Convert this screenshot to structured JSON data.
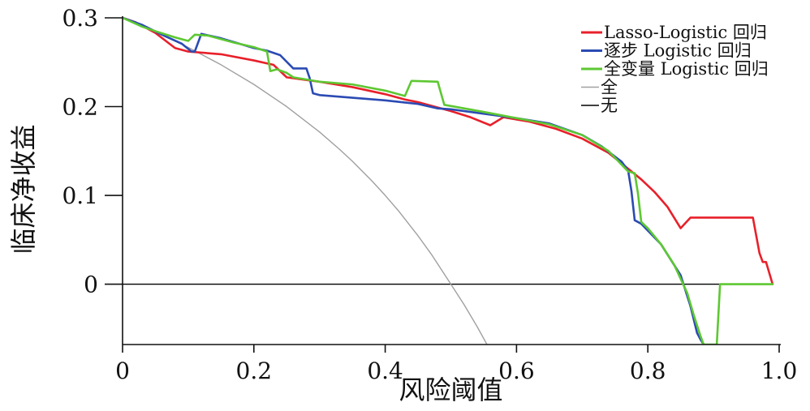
{
  "chart_data": {
    "type": "line",
    "xlabel": "风险阈值",
    "ylabel": "临床净收益",
    "xlim": [
      0,
      1.0
    ],
    "ylim": [
      -0.068,
      0.3
    ],
    "x_ticks": [
      {
        "value": 0,
        "label": "0"
      },
      {
        "value": 0.2,
        "label": "0.2"
      },
      {
        "value": 0.4,
        "label": "0.4"
      },
      {
        "value": 0.6,
        "label": "0.6"
      },
      {
        "value": 0.8,
        "label": "0.8"
      },
      {
        "value": 1.0,
        "label": "1.0"
      }
    ],
    "y_ticks": [
      {
        "value": 0,
        "label": "0"
      },
      {
        "value": 0.1,
        "label": "0.1"
      },
      {
        "value": 0.2,
        "label": "0.2"
      },
      {
        "value": 0.3,
        "label": "0.3"
      }
    ],
    "grid": false,
    "legend_position": "top-right",
    "series": [
      {
        "name": "Lasso-Logistic 回归",
        "color": "#e8202a",
        "width": 2.6,
        "points": [
          [
            0,
            0.3
          ],
          [
            0.02,
            0.295
          ],
          [
            0.05,
            0.283
          ],
          [
            0.08,
            0.266
          ],
          [
            0.1,
            0.262
          ],
          [
            0.15,
            0.259
          ],
          [
            0.2,
            0.252
          ],
          [
            0.23,
            0.247
          ],
          [
            0.25,
            0.233
          ],
          [
            0.3,
            0.228
          ],
          [
            0.35,
            0.222
          ],
          [
            0.4,
            0.214
          ],
          [
            0.43,
            0.208
          ],
          [
            0.45,
            0.205
          ],
          [
            0.5,
            0.195
          ],
          [
            0.53,
            0.188
          ],
          [
            0.56,
            0.179
          ],
          [
            0.58,
            0.188
          ],
          [
            0.62,
            0.183
          ],
          [
            0.66,
            0.175
          ],
          [
            0.7,
            0.164
          ],
          [
            0.74,
            0.148
          ],
          [
            0.77,
            0.13
          ],
          [
            0.79,
            0.118
          ],
          [
            0.81,
            0.104
          ],
          [
            0.83,
            0.087
          ],
          [
            0.85,
            0.063
          ],
          [
            0.865,
            0.075
          ],
          [
            0.9,
            0.075
          ],
          [
            0.96,
            0.075
          ],
          [
            0.97,
            0.035
          ],
          [
            0.975,
            0.025
          ],
          [
            0.98,
            0.025
          ],
          [
            0.99,
            0.0
          ]
        ]
      },
      {
        "name": "逐步 Logistic 回归",
        "color": "#2b4bb3",
        "width": 2.6,
        "points": [
          [
            0,
            0.3
          ],
          [
            0.03,
            0.292
          ],
          [
            0.06,
            0.281
          ],
          [
            0.09,
            0.271
          ],
          [
            0.105,
            0.262
          ],
          [
            0.11,
            0.262
          ],
          [
            0.12,
            0.282
          ],
          [
            0.15,
            0.277
          ],
          [
            0.2,
            0.266
          ],
          [
            0.22,
            0.263
          ],
          [
            0.24,
            0.258
          ],
          [
            0.26,
            0.243
          ],
          [
            0.28,
            0.243
          ],
          [
            0.285,
            0.232
          ],
          [
            0.29,
            0.215
          ],
          [
            0.3,
            0.213
          ],
          [
            0.35,
            0.21
          ],
          [
            0.4,
            0.207
          ],
          [
            0.45,
            0.203
          ],
          [
            0.48,
            0.198
          ],
          [
            0.5,
            0.197
          ],
          [
            0.6,
            0.187
          ],
          [
            0.65,
            0.181
          ],
          [
            0.7,
            0.168
          ],
          [
            0.73,
            0.155
          ],
          [
            0.76,
            0.138
          ],
          [
            0.77,
            0.128
          ],
          [
            0.775,
            0.105
          ],
          [
            0.78,
            0.072
          ],
          [
            0.79,
            0.068
          ],
          [
            0.82,
            0.045
          ],
          [
            0.85,
            0.01
          ],
          [
            0.865,
            -0.025
          ],
          [
            0.875,
            -0.055
          ],
          [
            0.88,
            -0.062
          ],
          [
            0.885,
            -0.068
          ]
        ]
      },
      {
        "name": "全变量 Logistic 回归",
        "color": "#5dc832",
        "width": 2.6,
        "points": [
          [
            0,
            0.3
          ],
          [
            0.03,
            0.29
          ],
          [
            0.05,
            0.285
          ],
          [
            0.08,
            0.278
          ],
          [
            0.1,
            0.274
          ],
          [
            0.11,
            0.281
          ],
          [
            0.13,
            0.28
          ],
          [
            0.17,
            0.272
          ],
          [
            0.2,
            0.267
          ],
          [
            0.22,
            0.262
          ],
          [
            0.225,
            0.24
          ],
          [
            0.235,
            0.242
          ],
          [
            0.25,
            0.238
          ],
          [
            0.26,
            0.233
          ],
          [
            0.3,
            0.228
          ],
          [
            0.35,
            0.225
          ],
          [
            0.4,
            0.218
          ],
          [
            0.43,
            0.212
          ],
          [
            0.44,
            0.229
          ],
          [
            0.48,
            0.228
          ],
          [
            0.49,
            0.202
          ],
          [
            0.55,
            0.194
          ],
          [
            0.6,
            0.187
          ],
          [
            0.65,
            0.18
          ],
          [
            0.7,
            0.168
          ],
          [
            0.74,
            0.15
          ],
          [
            0.77,
            0.127
          ],
          [
            0.78,
            0.125
          ],
          [
            0.785,
            0.102
          ],
          [
            0.79,
            0.07
          ],
          [
            0.8,
            0.063
          ],
          [
            0.82,
            0.045
          ],
          [
            0.84,
            0.022
          ],
          [
            0.86,
            -0.01
          ],
          [
            0.87,
            -0.035
          ],
          [
            0.88,
            -0.058
          ],
          [
            0.885,
            -0.068
          ],
          [
            0.905,
            -0.068
          ],
          [
            0.91,
            0.0
          ],
          [
            0.99,
            0.0
          ]
        ]
      },
      {
        "name": "全",
        "color": "#a0a0a0",
        "width": 1.4,
        "points": [
          [
            0,
            0.3
          ],
          [
            0.05,
            0.2842
          ],
          [
            0.1,
            0.2667
          ],
          [
            0.15,
            0.2471
          ],
          [
            0.2,
            0.225
          ],
          [
            0.25,
            0.2
          ],
          [
            0.3,
            0.1714
          ],
          [
            0.33,
            0.1522
          ],
          [
            0.35,
            0.1385
          ],
          [
            0.38,
            0.1161
          ],
          [
            0.4,
            0.1
          ],
          [
            0.42,
            0.0828
          ],
          [
            0.45,
            0.0545
          ],
          [
            0.47,
            0.034
          ],
          [
            0.5,
            0.0
          ],
          [
            0.52,
            -0.0229
          ],
          [
            0.54,
            -0.0478
          ],
          [
            0.555,
            -0.068
          ]
        ]
      },
      {
        "name": "无",
        "color": "#000000",
        "width": 1.4,
        "points": [
          [
            0,
            0
          ],
          [
            0.99,
            0
          ]
        ]
      }
    ]
  }
}
